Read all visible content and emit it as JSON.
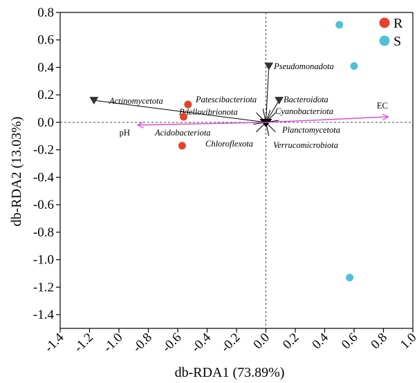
{
  "chart_data": {
    "type": "scatter",
    "xlabel": "db-RDA1 (73.89%)",
    "ylabel": "db-RDA2 (13.03%)",
    "xlim": [
      -1.4,
      1.0
    ],
    "ylim": [
      -1.5,
      0.8
    ],
    "xticks": [
      -1.4,
      -1.2,
      -1.0,
      -0.8,
      -0.6,
      -0.4,
      -0.2,
      0.0,
      0.2,
      0.4,
      0.6,
      0.8,
      1.0
    ],
    "xtick_labels": [
      "-1.4",
      "-1.2",
      "-1.0",
      "-0.8",
      "-0.6",
      "-0.4",
      "-0.2",
      "0.0",
      "0.2",
      "0.4",
      "0.6",
      "0.8",
      "1.0"
    ],
    "yticks": [
      0.8,
      0.6,
      0.4,
      0.2,
      0.0,
      -0.2,
      -0.4,
      -0.6,
      -0.8,
      -1.0,
      -1.2,
      -1.4
    ],
    "ytick_labels": [
      "0.8",
      "0.6",
      "0.4",
      "0.2",
      "0.0",
      "-0.2",
      "-0.4",
      "-0.6",
      "-0.8",
      "-1.0",
      "-1.2",
      "-1.4"
    ],
    "legend_placement": "top-right",
    "grid": false,
    "series": [
      {
        "name": "R",
        "color": "#e5432b",
        "points": [
          {
            "x": -0.53,
            "y": 0.13
          },
          {
            "x": -0.56,
            "y": 0.04
          },
          {
            "x": -0.57,
            "y": -0.17
          }
        ]
      },
      {
        "name": "S",
        "color": "#4fc0d5",
        "points": [
          {
            "x": 0.5,
            "y": 0.71
          },
          {
            "x": 0.6,
            "y": 0.41
          },
          {
            "x": 0.57,
            "y": -1.13
          }
        ]
      }
    ],
    "species": [
      {
        "label": "Actinomycetota",
        "x": -1.17,
        "y": 0.16
      },
      {
        "label": "Patescibacteriota",
        "x": -0.01,
        "y": 0.005
      },
      {
        "label": "Bdellovibrionota",
        "x": -0.02,
        "y": 0.01
      },
      {
        "label": "Acidobacteriota",
        "x": -0.03,
        "y": -0.005
      },
      {
        "label": "Chloroflexota",
        "x": -0.01,
        "y": -0.01
      },
      {
        "label": "Verrucomicrobiota",
        "x": 0.005,
        "y": -0.01
      },
      {
        "label": "Planctomycetota",
        "x": 0.01,
        "y": -0.005
      },
      {
        "label": "Cyanobacteriota",
        "x": 0.03,
        "y": 0.09
      },
      {
        "label": "Bacteroidota",
        "x": 0.09,
        "y": 0.16
      },
      {
        "label": "Pseudomonadota",
        "x": 0.02,
        "y": 0.41
      }
    ],
    "env_vectors": [
      {
        "label": "EC",
        "x": 0.83,
        "y": 0.04
      },
      {
        "label": "pH",
        "x": -0.87,
        "y": -0.02
      }
    ]
  }
}
